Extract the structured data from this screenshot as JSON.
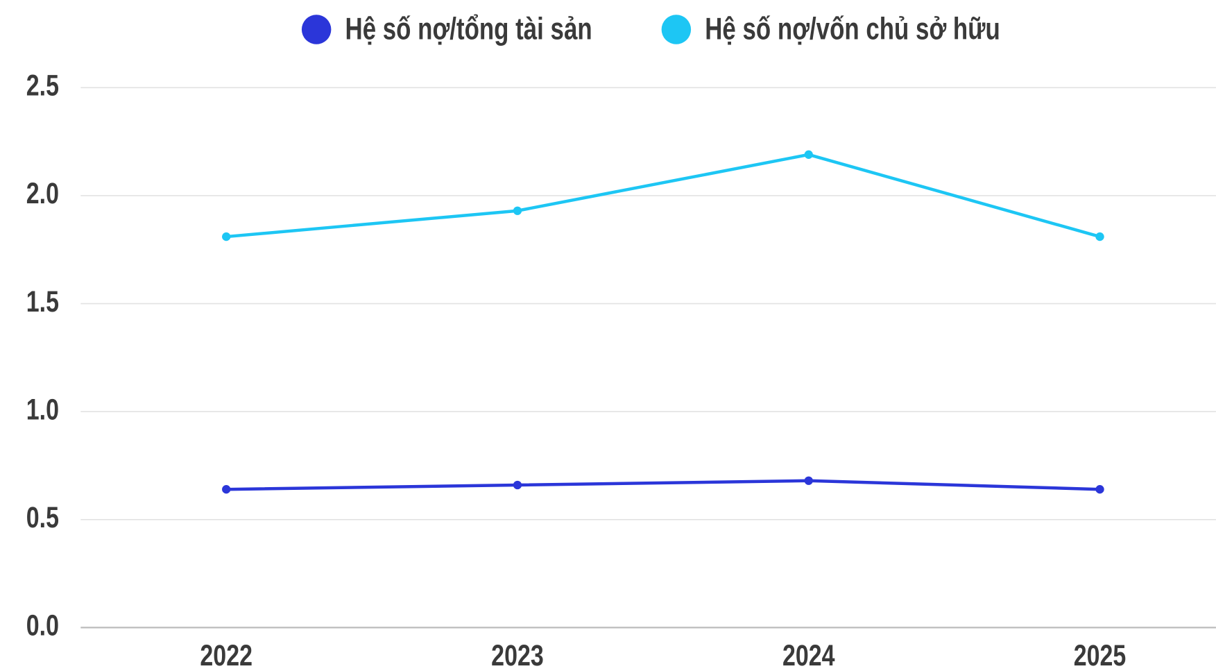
{
  "chart_data": {
    "type": "line",
    "categories": [
      "2022",
      "2023",
      "2024",
      "2025"
    ],
    "series": [
      {
        "name": "Hệ số nợ/tổng tài sản",
        "color": "#2b36d9",
        "values": [
          0.64,
          0.66,
          0.68,
          0.64
        ]
      },
      {
        "name": "Hệ số nợ/vốn chủ sở hữu",
        "color": "#1dc6f4",
        "values": [
          1.81,
          1.93,
          2.19,
          1.81
        ]
      }
    ],
    "ylim": [
      0,
      2.5
    ],
    "yticks": [
      {
        "value": 0,
        "label": "0.0"
      },
      0.5,
      {
        "value": 1,
        "label": "1.0"
      },
      1.5,
      {
        "value": 2,
        "label": "2.0"
      },
      2.5
    ],
    "grid": true,
    "legend": "top"
  }
}
